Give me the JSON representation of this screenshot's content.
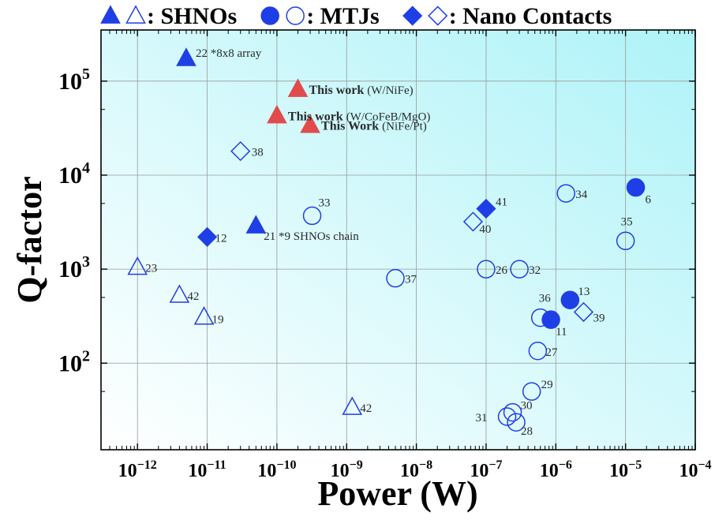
{
  "legend": [
    {
      "filled": "triangle",
      "label": ": SHNOs"
    },
    {
      "filled": "circle",
      "label": ": MTJs"
    },
    {
      "filled": "diamond",
      "label": ": Nano Contacts"
    }
  ],
  "colors": {
    "marker": "#1f3fe6",
    "this_work": "#e24b4b",
    "background_start": "#ffffff",
    "background_end": "#aef3f8",
    "grid": "#9a9a9a",
    "label": "#2a2a2a"
  },
  "chart_data": {
    "type": "scatter",
    "xlabel": "Power (W)",
    "ylabel": "Q-factor",
    "xscale": "log",
    "yscale": "log",
    "xlim": [
      3e-13,
      0.0001
    ],
    "ylim": [
      12,
      350000
    ],
    "x_ticks": [
      {
        "exp": "-12",
        "value": 1e-12
      },
      {
        "exp": "-11",
        "value": 1e-11
      },
      {
        "exp": "-10",
        "value": 1e-10
      },
      {
        "exp": "-9",
        "value": 1e-09
      },
      {
        "exp": "-8",
        "value": 1e-08
      },
      {
        "exp": "-7",
        "value": 1e-07
      },
      {
        "exp": "-6",
        "value": 1e-06
      },
      {
        "exp": "-5",
        "value": 1e-05
      },
      {
        "exp": "-4",
        "value": 0.0001
      }
    ],
    "y_ticks": [
      {
        "exp": "2",
        "value": 100
      },
      {
        "exp": "3",
        "value": 1000
      },
      {
        "exp": "4",
        "value": 10000
      },
      {
        "exp": "5",
        "value": 100000
      }
    ],
    "tick_base": "10",
    "grid": true,
    "legend_position": "top",
    "points": [
      {
        "marker": "triangle",
        "fill": "filled",
        "x": 5e-12,
        "y": 175000,
        "label": "22 *8x8 array"
      },
      {
        "marker": "triangle",
        "fill": "red",
        "x": 2e-10,
        "y": 82000,
        "label_bold": "This work",
        "label": "(W/NiFe)"
      },
      {
        "marker": "triangle",
        "fill": "red",
        "x": 1e-10,
        "y": 43000,
        "label_bold": "This work",
        "label": "(W/CoFeB/MgO)"
      },
      {
        "marker": "triangle",
        "fill": "red",
        "x": 3e-10,
        "y": 34000,
        "label_bold": "This Work",
        "label": "(NiFe/Pt)"
      },
      {
        "marker": "diamond",
        "fill": "open",
        "x": 3e-11,
        "y": 18000,
        "label": "38"
      },
      {
        "marker": "circle",
        "fill": "open",
        "x": 3.2e-10,
        "y": 3700,
        "label": "33"
      },
      {
        "marker": "triangle",
        "fill": "filled",
        "x": 5e-11,
        "y": 2900,
        "label": "21 *9 SHNOs chain"
      },
      {
        "marker": "diamond",
        "fill": "filled",
        "x": 1e-11,
        "y": 2200,
        "label": "12"
      },
      {
        "marker": "triangle",
        "fill": "open",
        "x": 1e-12,
        "y": 1050,
        "label": "23"
      },
      {
        "marker": "triangle",
        "fill": "open",
        "x": 4e-12,
        "y": 530,
        "label": "42"
      },
      {
        "marker": "triangle",
        "fill": "open",
        "x": 9e-12,
        "y": 310,
        "label": "19"
      },
      {
        "marker": "circle",
        "fill": "open",
        "x": 5e-09,
        "y": 800,
        "label": "37"
      },
      {
        "marker": "triangle",
        "fill": "open",
        "x": 1.2e-09,
        "y": 34,
        "label": "42"
      },
      {
        "marker": "diamond",
        "fill": "filled",
        "x": 1e-07,
        "y": 4400,
        "label": "41"
      },
      {
        "marker": "diamond",
        "fill": "open",
        "x": 6.5e-08,
        "y": 3200,
        "label": "40"
      },
      {
        "marker": "circle",
        "fill": "open",
        "x": 1e-07,
        "y": 1000,
        "label": "26"
      },
      {
        "marker": "circle",
        "fill": "open",
        "x": 3e-07,
        "y": 1000,
        "label": "32"
      },
      {
        "marker": "circle",
        "fill": "open",
        "x": 1.4e-06,
        "y": 6400,
        "label": "34"
      },
      {
        "marker": "circle",
        "fill": "filled",
        "x": 1.4e-05,
        "y": 7400,
        "label": "6"
      },
      {
        "marker": "circle",
        "fill": "open",
        "x": 1e-05,
        "y": 2000,
        "label": "35"
      },
      {
        "marker": "circle",
        "fill": "filled",
        "x": 1.6e-06,
        "y": 470,
        "label": "13"
      },
      {
        "marker": "circle",
        "fill": "open",
        "x": 6e-07,
        "y": 305,
        "label": "36"
      },
      {
        "marker": "circle",
        "fill": "filled",
        "x": 8.5e-07,
        "y": 290,
        "label": "11"
      },
      {
        "marker": "diamond",
        "fill": "open",
        "x": 2.5e-06,
        "y": 350,
        "label": "39"
      },
      {
        "marker": "circle",
        "fill": "open",
        "x": 5.5e-07,
        "y": 135,
        "label": "27"
      },
      {
        "marker": "circle",
        "fill": "open",
        "x": 4.5e-07,
        "y": 50,
        "label": "29"
      },
      {
        "marker": "circle",
        "fill": "open",
        "x": 2.4e-07,
        "y": 30,
        "label": "30"
      },
      {
        "marker": "circle",
        "fill": "open",
        "x": 2e-07,
        "y": 27,
        "label": "31"
      },
      {
        "marker": "circle",
        "fill": "open",
        "x": 2.7e-07,
        "y": 23.5,
        "label": "28"
      }
    ]
  }
}
